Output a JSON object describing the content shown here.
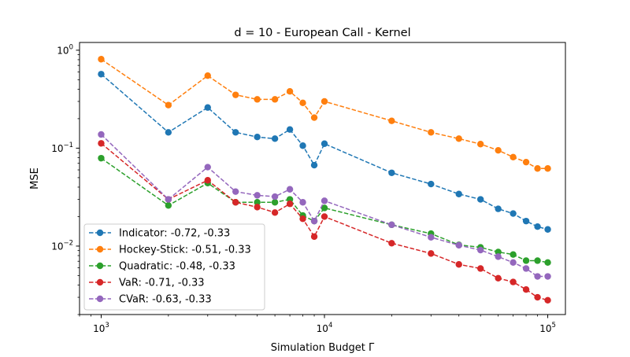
{
  "chart_data": {
    "type": "line",
    "title": "d = 10 - European Call - Kernel",
    "xlabel": "Simulation Budget Γ",
    "ylabel": "MSE",
    "xscale": "log",
    "yscale": "log",
    "xlim": [
      800,
      120000
    ],
    "ylim": [
      0.002,
      1.2
    ],
    "grid": false,
    "legend_position": "lower-left",
    "x_ticks": [
      {
        "value": 1000,
        "base": "10",
        "exp": "3"
      },
      {
        "value": 10000,
        "base": "10",
        "exp": "4"
      },
      {
        "value": 100000,
        "base": "10",
        "exp": "5"
      }
    ],
    "y_ticks": [
      {
        "value": 1,
        "base": "10",
        "exp": "0"
      },
      {
        "value": 0.1,
        "base": "10",
        "exp": "−1"
      },
      {
        "value": 0.01,
        "base": "10",
        "exp": "−2"
      }
    ],
    "x": [
      1000,
      2000,
      3000,
      4000,
      5000,
      6000,
      7000,
      8000,
      9000,
      10000,
      20000,
      30000,
      40000,
      50000,
      60000,
      70000,
      80000,
      90000,
      100000
    ],
    "series": [
      {
        "name": "Indicator: -0.72, -0.33",
        "color": "#1f77b4",
        "values": [
          0.57,
          0.145,
          0.26,
          0.145,
          0.13,
          0.125,
          0.155,
          0.106,
          0.067,
          0.111,
          0.056,
          0.043,
          0.034,
          0.03,
          0.024,
          0.0215,
          0.018,
          0.0158,
          0.0148
        ]
      },
      {
        "name": "Hockey-Stick: -0.51, -0.33",
        "color": "#ff7f0e",
        "values": [
          0.81,
          0.275,
          0.55,
          0.35,
          0.315,
          0.315,
          0.38,
          0.29,
          0.205,
          0.3,
          0.19,
          0.145,
          0.125,
          0.11,
          0.095,
          0.081,
          0.072,
          0.062,
          0.062
        ]
      },
      {
        "name": "Quadratic: -0.48, -0.33",
        "color": "#2ca02c",
        "values": [
          0.079,
          0.026,
          0.044,
          0.028,
          0.028,
          0.028,
          0.03,
          0.0205,
          0.018,
          0.0245,
          0.0165,
          0.0134,
          0.0103,
          0.0097,
          0.0087,
          0.0082,
          0.0071,
          0.0071,
          0.0068
        ]
      },
      {
        "name": "VaR: -0.71, -0.33",
        "color": "#d62728",
        "values": [
          0.112,
          0.03,
          0.047,
          0.028,
          0.025,
          0.022,
          0.027,
          0.019,
          0.0125,
          0.02,
          0.0107,
          0.0084,
          0.0065,
          0.0059,
          0.0047,
          0.0043,
          0.0036,
          0.003,
          0.0028
        ]
      },
      {
        "name": "CVaR: -0.63, -0.33",
        "color": "#9467bd",
        "values": [
          0.138,
          0.03,
          0.064,
          0.036,
          0.033,
          0.032,
          0.038,
          0.028,
          0.018,
          0.029,
          0.0165,
          0.0123,
          0.0102,
          0.0091,
          0.0078,
          0.0068,
          0.0059,
          0.0049,
          0.0049
        ]
      }
    ]
  }
}
